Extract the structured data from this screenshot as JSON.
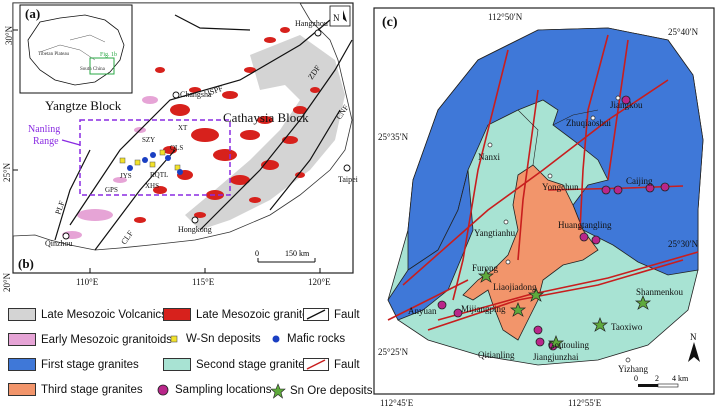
{
  "colors": {
    "late_mesozoic_volcanics": "#d4d4d4",
    "late_mesozoic_granitoids": "#d7211c",
    "early_mesozoic_granitoids": "#e6a4d6",
    "first_stage": "#3f78d8",
    "second_stage": "#a8e3d3",
    "third_stage": "#f2956b",
    "fault_red": "#c81e1e",
    "nanling_box": "#8a2be2",
    "ore_star": "#5faa3c",
    "sampling": "#b9268a",
    "w_sn": "#f2e22a",
    "mafic": "#1a3fc2"
  },
  "panel_a": {
    "label": "(a)",
    "north": "N",
    "lat_ticks": [
      "30°N",
      "25°N",
      "20°N"
    ],
    "lon_ticks": [
      "110°E",
      "115°E",
      "120°E"
    ],
    "places": {
      "changsha": "Changsha",
      "hangzhou": "Hangzhou",
      "taipei": "Taipei",
      "hongkong": "Hongkong",
      "qinzhou": "Qinzhou"
    },
    "blocks": {
      "yangtze": "Yangtze Block",
      "cathaysia": "Cathaysia Block"
    },
    "nanling": {
      "line1": "Nanling",
      "line2": "Range"
    },
    "faults": {
      "jspf": "JSPF",
      "zdf": "ZDF",
      "cnf": "CNF",
      "plf": "PLF",
      "clf": "CLF"
    },
    "areas": {
      "szy": "SZY",
      "xt": "XT",
      "qls": "QLS",
      "jys": "JYS",
      "rqtl": "RQTL",
      "gps": "GPS",
      "xhs": "XHS"
    },
    "scale": {
      "zero": "0",
      "label": "150 km"
    },
    "inset": {
      "fig": "Fig. 1b",
      "plateau": "Tibetan Plateau",
      "sc": "South China"
    }
  },
  "panel_b_label": "(b)",
  "panel_c": {
    "label": "(c)",
    "top_lon": "112°50′N",
    "top_right_lat": "25°40′N",
    "left_lat1": "25°35′N",
    "right_lat": "25°30′N",
    "left_lat2": "25°25′N",
    "bottom_lon_left": "112°45′E",
    "bottom_lon_right": "112°55′E",
    "scale": {
      "zero": "0",
      "two": "2",
      "four": "4 km"
    },
    "north": "N",
    "places": {
      "jiangkou": "Jiangkou",
      "zhuqiaoshui": "Zhuqiaoshui",
      "nanxi": "Nanxi",
      "yongchun": "Yongchun",
      "caijing": "Caijing",
      "yangtianhu": "Yangtianhu",
      "huangtangling": "Huangtangling",
      "furong": "Furong",
      "liaojiadong": "Liaojiadong",
      "anyuan": "Anyuan",
      "mijiangping": "Mijiangping",
      "shanmenkou": "Shanmenkou",
      "taoxiwo": "Taoxiwo",
      "goutouling": "Goutouling",
      "jiangjunzhai": "Jiangjunzhai",
      "qitianling": "Qitianling",
      "yizhang": "Yizhang"
    }
  },
  "legend": {
    "late_volcanics": "Late Mesozoic Volcanics",
    "late_granitoids": "Late Mesozoic granitoids",
    "fault1": "Fault",
    "early_granitoids": "Early Mesozoic granitoids",
    "w_sn": "W-Sn deposits",
    "mafic": "Mafic rocks",
    "first_stage": "First stage granites",
    "second_stage": "Second stage granites",
    "fault2": "Fault",
    "third_stage": "Third stage granites",
    "sampling": "Sampling locations",
    "ore": "Sn Ore deposits"
  }
}
